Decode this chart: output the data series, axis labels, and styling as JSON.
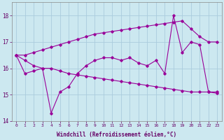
{
  "xlabel": "Windchill (Refroidissement éolien,°C)",
  "hours": [
    0,
    1,
    2,
    3,
    4,
    5,
    6,
    7,
    8,
    9,
    10,
    11,
    12,
    13,
    14,
    15,
    16,
    17,
    18,
    19,
    20,
    21,
    22,
    23
  ],
  "line_main": [
    16.5,
    15.8,
    15.9,
    16.0,
    14.3,
    15.1,
    15.3,
    15.8,
    16.1,
    16.3,
    16.4,
    16.4,
    16.3,
    16.4,
    16.2,
    16.1,
    16.3,
    15.8,
    18.0,
    16.6,
    17.0,
    16.9,
    15.1,
    15.1
  ],
  "line_upper": [
    16.5,
    16.5,
    16.6,
    16.7,
    16.8,
    16.9,
    17.0,
    17.1,
    17.2,
    17.3,
    17.35,
    17.4,
    17.45,
    17.5,
    17.55,
    17.6,
    17.65,
    17.7,
    17.75,
    17.8,
    17.5,
    17.2,
    17.0,
    17.0
  ],
  "line_lower": [
    16.5,
    16.3,
    16.1,
    16.0,
    16.0,
    15.9,
    15.8,
    15.75,
    15.7,
    15.65,
    15.6,
    15.55,
    15.5,
    15.45,
    15.4,
    15.35,
    15.3,
    15.25,
    15.2,
    15.15,
    15.1,
    15.1,
    15.1,
    15.05
  ],
  "line_color": "#990099",
  "bg_color": "#cce8f0",
  "grid_color": "#aaccdd",
  "ylim": [
    14,
    18.5
  ],
  "yticks": [
    14,
    15,
    16,
    17,
    18
  ],
  "xticks": [
    0,
    1,
    2,
    3,
    4,
    5,
    6,
    7,
    8,
    9,
    10,
    11,
    12,
    13,
    14,
    15,
    16,
    17,
    18,
    19,
    20,
    21,
    22,
    23
  ]
}
